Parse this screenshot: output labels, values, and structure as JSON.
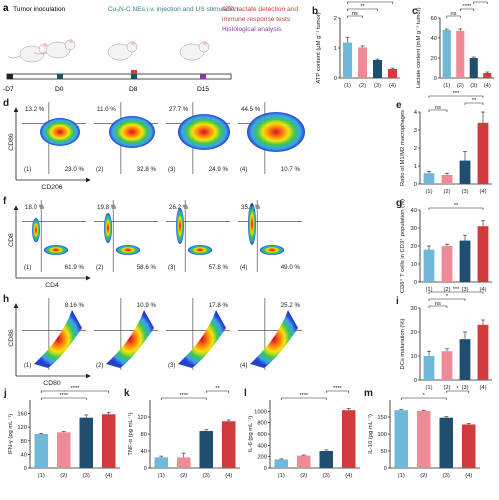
{
  "panel_letters": [
    "a",
    "b",
    "c",
    "d",
    "e",
    "f",
    "g",
    "h",
    "i",
    "j",
    "k",
    "l",
    "m"
  ],
  "timeline": {
    "step1": "Tumor inoculation",
    "step2": "Cu₂N-C NEs i.v. injection and US stimulation",
    "step3a": "ATP, lactate detection and",
    "step3b": "immune response tests",
    "step4": "Histological analysis",
    "days": [
      "-D7",
      "D0",
      "D8",
      "D15"
    ]
  },
  "colors": {
    "g1": "#6fb8d6",
    "g2": "#ee8b97",
    "g3": "#1f4e6e",
    "g4": "#d23b3b",
    "teal_text": "#2f7f86",
    "red_text": "#d23b3b",
    "purple_text": "#8a3a9b"
  },
  "groups": [
    "(1)",
    "(2)",
    "(3)",
    "(4)"
  ],
  "sig": {
    "ns": "ns",
    "s1": "*",
    "s2": "**",
    "s3": "***",
    "s4": "****"
  },
  "flow_d": {
    "ylabel": "CD86",
    "xlabel": "CD206",
    "ul": [
      "13.2 %",
      "11.0 %",
      "27.7 %",
      "44.5 %"
    ],
    "lr": [
      "23.0 %",
      "32.8 %",
      "24.9 %",
      "10.7 %"
    ]
  },
  "flow_f": {
    "ylabel": "CD8",
    "xlabel": "CD4",
    "ul": [
      "18.0 %",
      "19.8 %",
      "26.2 %",
      "35.7 %"
    ],
    "lr": [
      "61.9 %",
      "58.6 %",
      "57.8 %",
      "49.0 %"
    ]
  },
  "flow_h": {
    "ylabel": "CD86",
    "xlabel": "CD80",
    "ur": [
      "8.16 %",
      "10.9 %",
      "17.8 %",
      "25.2 %"
    ]
  },
  "chart_data": [
    {
      "panel": "b",
      "type": "bar",
      "categories": [
        "(1)",
        "(2)",
        "(3)",
        "(4)"
      ],
      "values": [
        1.18,
        1.02,
        0.6,
        0.3
      ],
      "errors": [
        0.18,
        0.05,
        0.03,
        0.03
      ],
      "ylabel": "ATP content (μM g⁻¹ tumor)",
      "ylim": [
        0,
        2.0
      ],
      "yticks": [
        0,
        1,
        2
      ],
      "sig": [
        {
          "a": 0,
          "b": 1,
          "label": "ns"
        },
        {
          "a": 0,
          "b": 2,
          "label": "**"
        },
        {
          "a": 0,
          "b": 3,
          "label": "***"
        }
      ]
    },
    {
      "panel": "c",
      "type": "bar",
      "categories": [
        "(1)",
        "(2)",
        "(3)",
        "(4)"
      ],
      "values": [
        48,
        47,
        20,
        5
      ],
      "errors": [
        1,
        2,
        1,
        1
      ],
      "ylabel": "Lactate content (mM g⁻¹ tumor)",
      "ylim": [
        0,
        60
      ],
      "yticks": [
        0,
        20,
        40,
        60
      ],
      "sig": [
        {
          "a": 0,
          "b": 1,
          "label": "ns"
        },
        {
          "a": 1,
          "b": 2,
          "label": "****"
        },
        {
          "a": 2,
          "b": 3,
          "label": "****"
        }
      ]
    },
    {
      "panel": "e",
      "type": "bar",
      "categories": [
        "(1)",
        "(2)",
        "(3)",
        "(4)"
      ],
      "values": [
        0.6,
        0.5,
        1.3,
        3.4
      ],
      "errors": [
        0.1,
        0.1,
        0.5,
        0.6
      ],
      "ylabel": "Ratio of M1/M2 macrophages",
      "ylim": [
        0,
        4
      ],
      "yticks": [
        0,
        1,
        2,
        3,
        4
      ],
      "sig": [
        {
          "a": 0,
          "b": 1,
          "label": "ns"
        },
        {
          "a": 2,
          "b": 3,
          "label": "**"
        },
        {
          "a": 0,
          "b": 3,
          "label": "***"
        }
      ]
    },
    {
      "panel": "g",
      "type": "bar",
      "categories": [
        "(1)",
        "(2)",
        "(3)",
        "(4)"
      ],
      "values": [
        18,
        20,
        23,
        31
      ],
      "errors": [
        2,
        1,
        3,
        3
      ],
      "ylabel": "CD8⁺ T cells in CD3⁺ population (%)",
      "ylim": [
        0,
        40
      ],
      "yticks": [
        0,
        10,
        20,
        30,
        40
      ],
      "sig": [
        {
          "a": 0,
          "b": 3,
          "label": "**"
        }
      ]
    },
    {
      "panel": "i",
      "type": "bar",
      "categories": [
        "(1)",
        "(2)",
        "(3)",
        "(4)"
      ],
      "values": [
        10,
        12,
        17,
        23
      ],
      "errors": [
        2,
        1,
        3,
        2
      ],
      "ylabel": "DCs maturation (%)",
      "ylim": [
        0,
        30
      ],
      "yticks": [
        0,
        10,
        20,
        30
      ],
      "sig": [
        {
          "a": 0,
          "b": 1,
          "label": "ns"
        },
        {
          "a": 0,
          "b": 2,
          "label": "*"
        },
        {
          "a": 0,
          "b": 3,
          "label": "***"
        }
      ]
    },
    {
      "panel": "j",
      "type": "bar",
      "categories": [
        "(1)",
        "(2)",
        "(3)",
        "(4)"
      ],
      "values": [
        100,
        105,
        148,
        158
      ],
      "errors": [
        2,
        2,
        8,
        6
      ],
      "ylabel": "IFN-γ (pg mL⁻¹)",
      "ylim": [
        0,
        200
      ],
      "yticks": [
        0,
        40,
        80,
        120,
        160
      ],
      "sig": [
        {
          "a": 0,
          "b": 2,
          "label": "****"
        },
        {
          "a": 0,
          "b": 3,
          "label": "****"
        }
      ]
    },
    {
      "panel": "k",
      "type": "bar",
      "categories": [
        "(1)",
        "(2)",
        "(3)",
        "(4)"
      ],
      "values": [
        25,
        25,
        87,
        110
      ],
      "errors": [
        3,
        10,
        3,
        3
      ],
      "ylabel": "TNF-α (pg mL⁻¹)",
      "ylim": [
        0,
        160
      ],
      "yticks": [
        0,
        40,
        80,
        120
      ],
      "sig": [
        {
          "a": 0,
          "b": 2,
          "label": "****"
        },
        {
          "a": 2,
          "b": 3,
          "label": "**"
        }
      ]
    },
    {
      "panel": "l",
      "type": "bar",
      "categories": [
        "(1)",
        "(2)",
        "(3)",
        "(4)"
      ],
      "values": [
        150,
        220,
        300,
        1020
      ],
      "errors": [
        10,
        10,
        20,
        30
      ],
      "ylabel": "IL-6 (pg mL⁻¹)",
      "ylim": [
        0,
        1200
      ],
      "yticks": [
        0,
        200,
        400,
        600,
        800,
        1000
      ],
      "sig": [
        {
          "a": 0,
          "b": 2,
          "label": "****"
        },
        {
          "a": 2,
          "b": 3,
          "label": "****"
        }
      ]
    },
    {
      "panel": "m",
      "type": "bar",
      "categories": [
        "(1)",
        "(2)",
        "(3)",
        "(4)"
      ],
      "values": [
        170,
        168,
        148,
        128
      ],
      "errors": [
        2,
        2,
        3,
        3
      ],
      "ylabel": "IL-10 (pg mL⁻¹)",
      "ylim": [
        0,
        200
      ],
      "yticks": [
        0,
        50,
        100,
        150
      ],
      "sig": [
        {
          "a": 0,
          "b": 2,
          "label": "*"
        },
        {
          "a": 2,
          "b": 3,
          "label": "*"
        }
      ]
    }
  ]
}
